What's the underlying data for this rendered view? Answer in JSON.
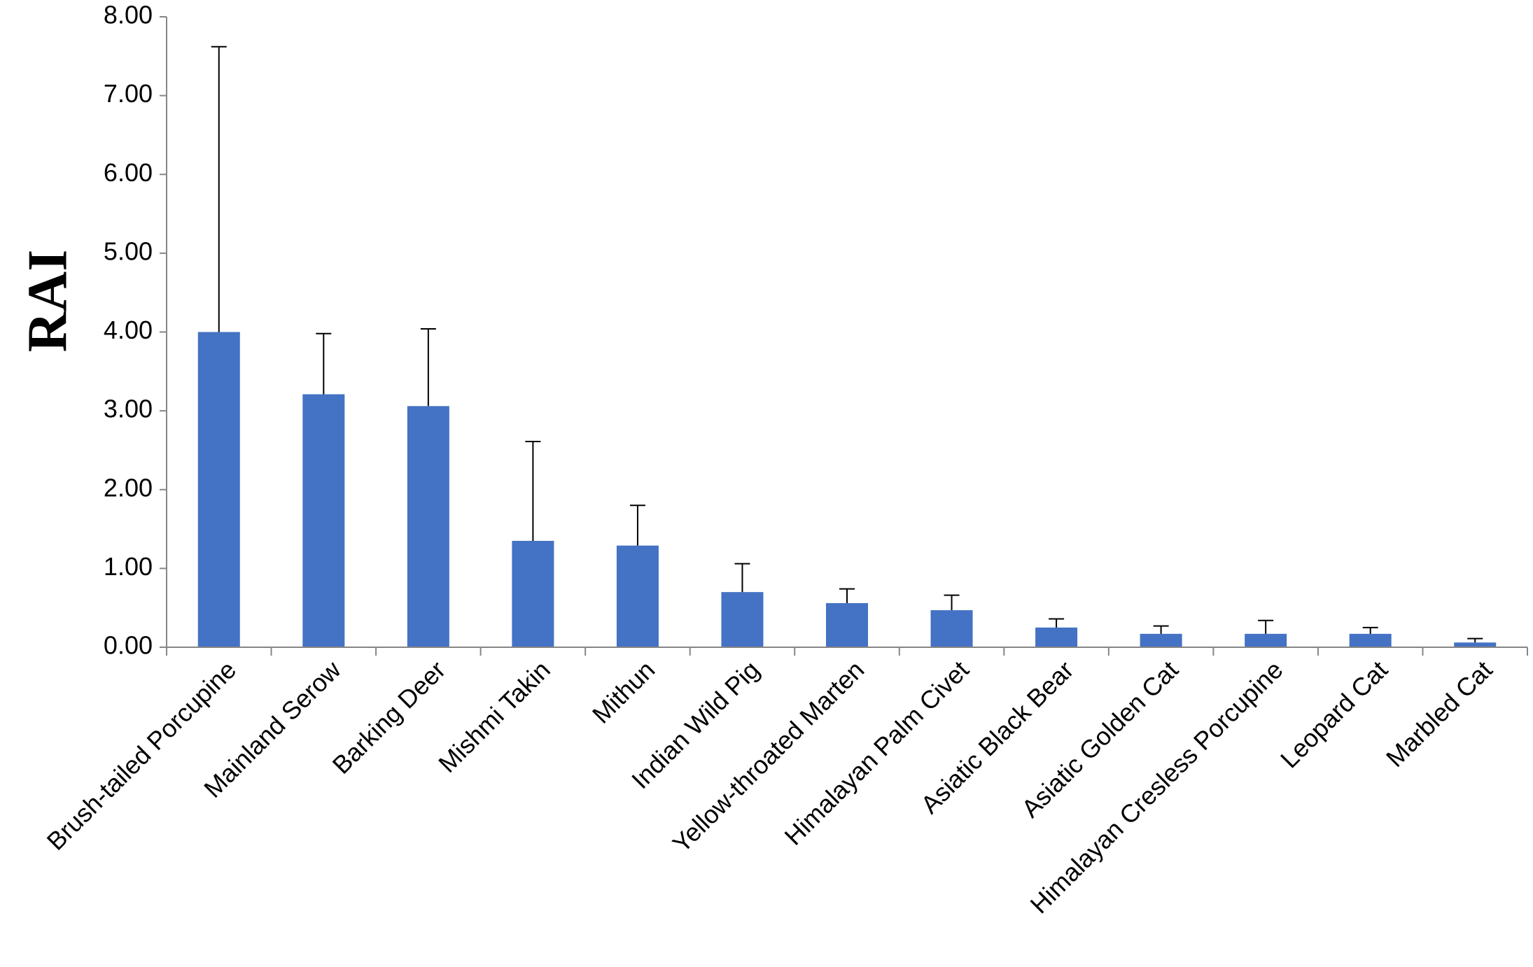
{
  "chart_data": {
    "type": "bar",
    "ylabel": "RAI",
    "xlabel": "",
    "ylim": [
      0,
      8
    ],
    "yticks": [
      "0.00",
      "1.00",
      "2.00",
      "3.00",
      "4.00",
      "5.00",
      "6.00",
      "7.00",
      "8.00"
    ],
    "grid": false,
    "legend": "none",
    "bar_color": "#4472c4",
    "categories": [
      "Brush-tailed Porcupine",
      "Mainland Serow",
      "Barking Deer",
      "Mishmi Takin",
      "Mithun",
      "Indian Wild Pig",
      "Yellow-throated Marten",
      "Himalayan Palm Civet",
      "Asiatic Black Bear",
      "Asiatic Golden Cat",
      "Himalayan Cresless Porcupine",
      "Leopard Cat",
      "Marbled Cat"
    ],
    "values": [
      4.0,
      3.21,
      3.06,
      1.35,
      1.29,
      0.7,
      0.56,
      0.47,
      0.25,
      0.17,
      0.17,
      0.17,
      0.06
    ],
    "error_upper": [
      7.62,
      3.98,
      4.04,
      2.61,
      1.8,
      1.06,
      0.74,
      0.66,
      0.36,
      0.27,
      0.34,
      0.25,
      0.11
    ]
  }
}
